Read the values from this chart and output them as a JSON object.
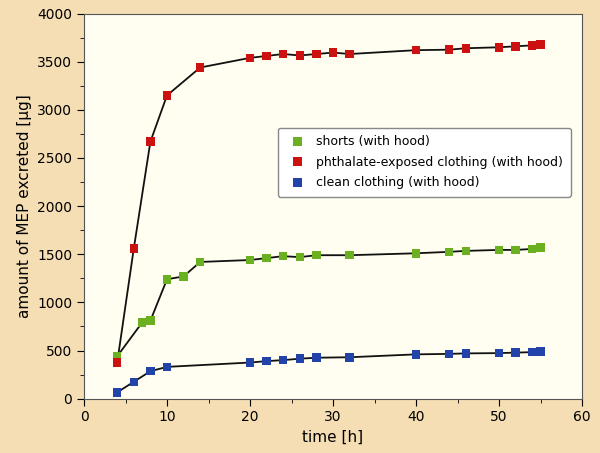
{
  "title": "",
  "xlabel": "time [h]",
  "ylabel": "amount of MEP excreted [µg]",
  "xlim": [
    0,
    60
  ],
  "ylim": [
    0,
    4000
  ],
  "background_color": "#f5deb3",
  "plot_background_color": "#fffef0",
  "series": [
    {
      "label": "shorts (with hood)",
      "color": "#6ab020",
      "x": [
        4,
        7,
        8,
        10,
        12,
        14,
        20,
        22,
        24,
        26,
        28,
        32,
        40,
        44,
        46,
        50,
        52,
        54,
        55
      ],
      "y": [
        440,
        790,
        810,
        1240,
        1270,
        1420,
        1440,
        1460,
        1480,
        1470,
        1490,
        1490,
        1510,
        1525,
        1535,
        1545,
        1545,
        1555,
        1570
      ]
    },
    {
      "label": "phthalate-exposed clothing (with hood)",
      "color": "#cc1111",
      "x": [
        4,
        6,
        8,
        10,
        14,
        20,
        22,
        24,
        26,
        28,
        30,
        32,
        40,
        44,
        46,
        50,
        52,
        54,
        55
      ],
      "y": [
        375,
        1560,
        2670,
        3150,
        3440,
        3540,
        3560,
        3580,
        3565,
        3580,
        3595,
        3580,
        3620,
        3625,
        3640,
        3650,
        3660,
        3670,
        3680
      ]
    },
    {
      "label": "clean clothing (with hood)",
      "color": "#2244aa",
      "x": [
        4,
        6,
        8,
        10,
        20,
        22,
        24,
        26,
        28,
        32,
        40,
        44,
        46,
        50,
        52,
        54,
        55
      ],
      "y": [
        65,
        175,
        285,
        330,
        375,
        390,
        400,
        415,
        425,
        430,
        460,
        465,
        470,
        473,
        478,
        483,
        490
      ]
    }
  ],
  "legend_fontsize": 9,
  "axis_fontsize": 11,
  "tick_fontsize": 10,
  "yticks": [
    0,
    500,
    1000,
    1500,
    2000,
    2500,
    3000,
    3500,
    4000
  ],
  "xticks": [
    0,
    10,
    20,
    30,
    40,
    50,
    60
  ],
  "line_color": "#111111",
  "line_width": 1.3,
  "marker_size": 38
}
